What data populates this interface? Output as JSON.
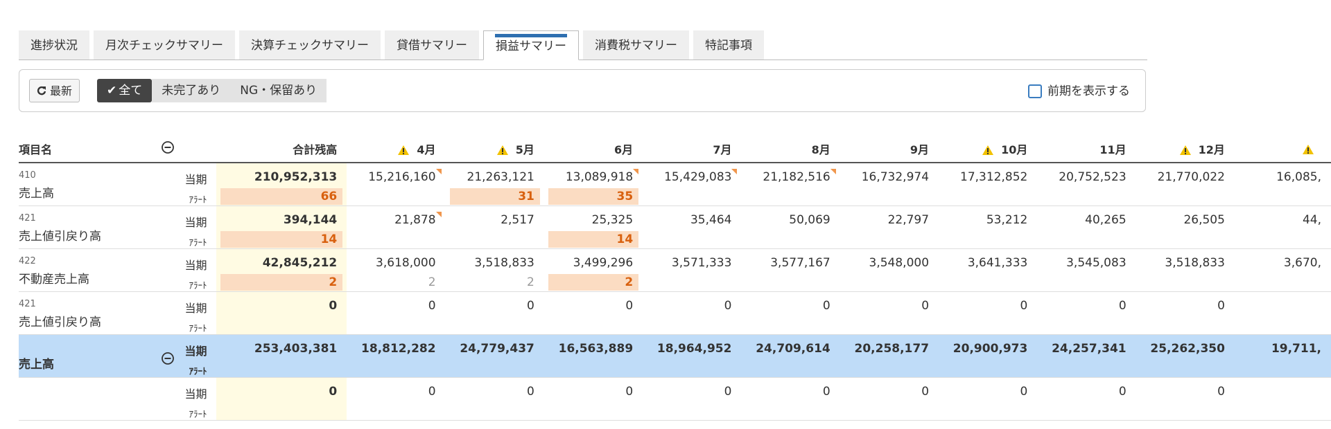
{
  "tabs": {
    "items": [
      "進捗状況",
      "月次チェックサマリー",
      "決算チェックサマリー",
      "貸借サマリー",
      "損益サマリー",
      "消費税サマリー",
      "特記事項"
    ],
    "active": 4
  },
  "toolbar": {
    "refresh": "最新",
    "filters": [
      "全て",
      "未完了あり",
      "NG・保留あり"
    ],
    "active_filter": 0,
    "checkbox_label": "前期を表示する"
  },
  "table": {
    "name_header": "項目名",
    "current_label": "当期",
    "alert_label": "ｱﾗｰﾄ",
    "columns": [
      {
        "label": "合計残高"
      },
      {
        "label": "4月",
        "warning": true
      },
      {
        "label": "5月",
        "warning": true
      },
      {
        "label": "6月"
      },
      {
        "label": "7月"
      },
      {
        "label": "8月"
      },
      {
        "label": "9月"
      },
      {
        "label": "10月",
        "warning": true
      },
      {
        "label": "11月"
      },
      {
        "label": "12月",
        "warning": true
      },
      {
        "warning": true
      }
    ],
    "rows": [
      {
        "code": "410",
        "name": "売上高",
        "cells": [
          {
            "value": "210,952,313",
            "alert": "66",
            "highlight": true
          },
          {
            "value": "15,216,160",
            "flag": true
          },
          {
            "value": "21,263,121",
            "alert": "31",
            "highlight": true
          },
          {
            "value": "13,089,918",
            "flag": true,
            "alert": "35",
            "highlight": true
          },
          {
            "value": "15,429,083",
            "flag": true
          },
          {
            "value": "21,182,516",
            "flag": true
          },
          {
            "value": "16,732,974"
          },
          {
            "value": "17,312,852"
          },
          {
            "value": "20,752,523"
          },
          {
            "value": "21,770,022"
          },
          {
            "value": "16,085,"
          }
        ]
      },
      {
        "code": "421",
        "name": "売上値引戻り高",
        "cells": [
          {
            "value": "394,144",
            "alert": "14",
            "highlight": true
          },
          {
            "value": "21,878",
            "flag": true
          },
          {
            "value": "2,517"
          },
          {
            "value": "25,325",
            "alert": "14",
            "highlight": true
          },
          {
            "value": "35,464"
          },
          {
            "value": "50,069"
          },
          {
            "value": "22,797"
          },
          {
            "value": "53,212"
          },
          {
            "value": "40,265"
          },
          {
            "value": "26,505"
          },
          {
            "value": "44,"
          }
        ]
      },
      {
        "code": "422",
        "name": "不動産売上高",
        "cells": [
          {
            "value": "42,845,212",
            "alert": "2",
            "highlight": true
          },
          {
            "value": "3,618,000",
            "alert": "2"
          },
          {
            "value": "3,518,833",
            "alert": "2"
          },
          {
            "value": "3,499,296",
            "alert": "2",
            "highlight": true
          },
          {
            "value": "3,571,333"
          },
          {
            "value": "3,577,167"
          },
          {
            "value": "3,548,000"
          },
          {
            "value": "3,641,333"
          },
          {
            "value": "3,545,083"
          },
          {
            "value": "3,518,833"
          },
          {
            "value": "3,670,"
          }
        ]
      },
      {
        "code": "421",
        "name": "売上値引戻り高",
        "cells": [
          {
            "value": "0"
          },
          {
            "value": "0"
          },
          {
            "value": "0"
          },
          {
            "value": "0"
          },
          {
            "value": "0"
          },
          {
            "value": "0"
          },
          {
            "value": "0"
          },
          {
            "value": "0"
          },
          {
            "value": "0"
          },
          {
            "value": "0"
          }
        ]
      },
      {
        "name": "売上高",
        "summary": true,
        "cells": [
          {
            "value": "253,403,381"
          },
          {
            "value": "18,812,282"
          },
          {
            "value": "24,779,437"
          },
          {
            "value": "16,563,889"
          },
          {
            "value": "18,964,952"
          },
          {
            "value": "24,709,614"
          },
          {
            "value": "20,258,177"
          },
          {
            "value": "20,900,973"
          },
          {
            "value": "24,257,341"
          },
          {
            "value": "25,262,350"
          },
          {
            "value": "19,711,"
          }
        ]
      },
      {
        "cells": [
          {
            "value": "0"
          },
          {
            "value": "0"
          },
          {
            "value": "0"
          },
          {
            "value": "0"
          },
          {
            "value": "0"
          },
          {
            "value": "0"
          },
          {
            "value": "0"
          },
          {
            "value": "0"
          },
          {
            "value": "0"
          },
          {
            "value": "0"
          }
        ]
      }
    ]
  }
}
